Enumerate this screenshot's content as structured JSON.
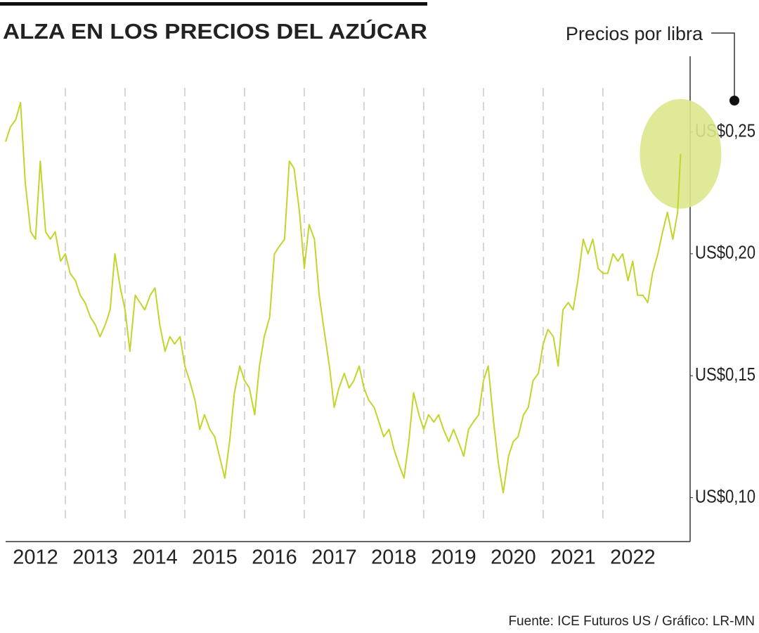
{
  "chart_data": {
    "type": "line",
    "title": "ALZA EN LOS PRECIOS DEL AZÚCAR",
    "annotation": "Precios por libra",
    "source": "Fuente: ICE Futuros US / Gráfico: LR-MN",
    "color": "#c5d42a",
    "highlight_color": "#dce78c",
    "grid": true,
    "xlim": [
      2012,
      2023.46
    ],
    "ylim": [
      0.082,
      0.281
    ],
    "xticks": [
      {
        "value": 2012.5,
        "label": "2012"
      },
      {
        "value": 2013.5,
        "label": "2013"
      },
      {
        "value": 2014.5,
        "label": "2014"
      },
      {
        "value": 2015.5,
        "label": "2015"
      },
      {
        "value": 2016.5,
        "label": "2016"
      },
      {
        "value": 2017.5,
        "label": "2017"
      },
      {
        "value": 2018.5,
        "label": "2018"
      },
      {
        "value": 2019.5,
        "label": "2019"
      },
      {
        "value": 2020.5,
        "label": "2020"
      },
      {
        "value": 2021.5,
        "label": "2021"
      },
      {
        "value": 2022.5,
        "label": "2022"
      }
    ],
    "yticks": [
      {
        "value": 0.1,
        "label": "US$0,10"
      },
      {
        "value": 0.15,
        "label": "US$0,15"
      },
      {
        "value": 0.2,
        "label": "US$0,20"
      },
      {
        "value": 0.25,
        "label": "US$0,25"
      }
    ],
    "x": [
      2012.0,
      2012.08,
      2012.17,
      2012.25,
      2012.33,
      2012.42,
      2012.5,
      2012.58,
      2012.67,
      2012.75,
      2012.83,
      2012.92,
      2013.0,
      2013.08,
      2013.17,
      2013.25,
      2013.33,
      2013.42,
      2013.5,
      2013.58,
      2013.67,
      2013.75,
      2013.83,
      2013.92,
      2014.0,
      2014.08,
      2014.17,
      2014.25,
      2014.33,
      2014.42,
      2014.5,
      2014.58,
      2014.67,
      2014.75,
      2014.83,
      2014.92,
      2015.0,
      2015.08,
      2015.17,
      2015.25,
      2015.33,
      2015.42,
      2015.5,
      2015.58,
      2015.67,
      2015.75,
      2015.83,
      2015.92,
      2016.0,
      2016.08,
      2016.17,
      2016.25,
      2016.33,
      2016.42,
      2016.5,
      2016.58,
      2016.67,
      2016.75,
      2016.83,
      2016.92,
      2017.0,
      2017.08,
      2017.17,
      2017.25,
      2017.33,
      2017.42,
      2017.5,
      2017.58,
      2017.67,
      2017.75,
      2017.83,
      2017.92,
      2018.0,
      2018.08,
      2018.17,
      2018.25,
      2018.33,
      2018.42,
      2018.5,
      2018.58,
      2018.67,
      2018.75,
      2018.83,
      2018.92,
      2019.0,
      2019.08,
      2019.17,
      2019.25,
      2019.33,
      2019.42,
      2019.5,
      2019.58,
      2019.67,
      2019.75,
      2019.83,
      2019.92,
      2020.0,
      2020.08,
      2020.17,
      2020.25,
      2020.33,
      2020.42,
      2020.5,
      2020.58,
      2020.67,
      2020.75,
      2020.83,
      2020.92,
      2021.0,
      2021.08,
      2021.17,
      2021.25,
      2021.33,
      2021.42,
      2021.5,
      2021.58,
      2021.67,
      2021.75,
      2021.83,
      2021.92,
      2022.0,
      2022.08,
      2022.17,
      2022.25,
      2022.33,
      2022.42,
      2022.5,
      2022.58,
      2022.67,
      2022.75,
      2022.83,
      2022.92,
      2023.0,
      2023.08,
      2023.17,
      2023.25,
      2023.3
    ],
    "values": [
      0.246,
      0.252,
      0.255,
      0.262,
      0.229,
      0.209,
      0.206,
      0.238,
      0.209,
      0.206,
      0.209,
      0.197,
      0.2,
      0.192,
      0.189,
      0.183,
      0.18,
      0.174,
      0.171,
      0.166,
      0.171,
      0.177,
      0.2,
      0.186,
      0.177,
      0.16,
      0.183,
      0.18,
      0.177,
      0.183,
      0.186,
      0.171,
      0.16,
      0.166,
      0.163,
      0.166,
      0.154,
      0.148,
      0.14,
      0.128,
      0.134,
      0.128,
      0.125,
      0.117,
      0.108,
      0.123,
      0.143,
      0.154,
      0.148,
      0.145,
      0.134,
      0.154,
      0.166,
      0.174,
      0.2,
      0.203,
      0.206,
      0.238,
      0.235,
      0.217,
      0.194,
      0.212,
      0.206,
      0.183,
      0.169,
      0.154,
      0.137,
      0.145,
      0.151,
      0.145,
      0.148,
      0.154,
      0.145,
      0.14,
      0.137,
      0.131,
      0.125,
      0.128,
      0.12,
      0.114,
      0.108,
      0.123,
      0.143,
      0.134,
      0.128,
      0.134,
      0.131,
      0.134,
      0.128,
      0.123,
      0.128,
      0.123,
      0.117,
      0.128,
      0.131,
      0.134,
      0.148,
      0.154,
      0.131,
      0.114,
      0.102,
      0.117,
      0.123,
      0.125,
      0.134,
      0.137,
      0.148,
      0.151,
      0.163,
      0.169,
      0.166,
      0.154,
      0.177,
      0.18,
      0.177,
      0.189,
      0.206,
      0.2,
      0.206,
      0.194,
      0.192,
      0.192,
      0.2,
      0.197,
      0.2,
      0.189,
      0.197,
      0.183,
      0.183,
      0.18,
      0.192,
      0.2,
      0.209,
      0.217,
      0.206,
      0.217,
      0.241
    ]
  }
}
